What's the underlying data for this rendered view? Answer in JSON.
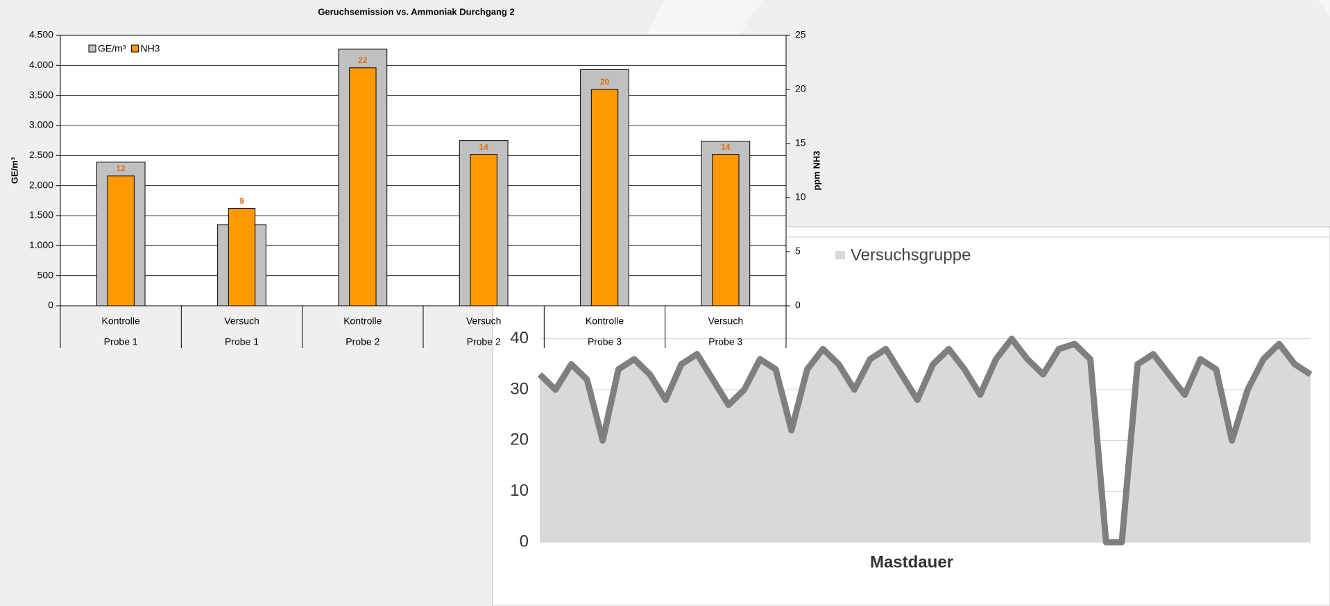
{
  "chart_data": [
    {
      "type": "bar",
      "title": "Geruchsemission vs. Ammoniak Durchgang 2",
      "categories": [
        "Kontrolle",
        "Versuch",
        "Kontrolle",
        "Versuch",
        "Kontrolle",
        "Versuch"
      ],
      "category_groups": [
        "Probe 1",
        "Probe 1",
        "Probe 2",
        "Probe 2",
        "Probe 3",
        "Probe 3"
      ],
      "y_label": "GE/m³",
      "y2_label": "ppm NH3",
      "series": [
        {
          "name": "GE/m³",
          "color": "#c0c0c0",
          "values": [
            2390,
            1350,
            4270,
            2750,
            3930,
            2740
          ]
        },
        {
          "name": "NH3",
          "color": "#ff9900",
          "axis": "y2",
          "values": [
            12,
            9,
            22,
            14,
            20,
            14
          ]
        }
      ],
      "ylim": [
        0,
        4500
      ],
      "yticks": [
        0,
        {
          "value": 500,
          "label": "500"
        },
        {
          "value": 1000,
          "label": "1.000"
        },
        {
          "value": 1500,
          "label": "1.500"
        },
        {
          "value": 2000,
          "label": "2.000"
        },
        {
          "value": 2500,
          "label": "2.500"
        },
        {
          "value": 3000,
          "label": "3.000"
        },
        {
          "value": 3500,
          "label": "3.500"
        },
        {
          "value": 4000,
          "label": "4.000"
        },
        {
          "value": 4500,
          "label": "4.500"
        }
      ],
      "y2lim": [
        0,
        25
      ],
      "y2ticks": [
        0,
        5,
        10,
        15,
        20,
        25
      ],
      "grid": true,
      "legend": "top-left",
      "value_label_color": "#e46c0a"
    },
    {
      "type": "area",
      "x_label": "Mastdauer",
      "series": [
        {
          "name": "Versuchsgruppe",
          "color": "#d9d9d9",
          "line_color": "#7f7f7f",
          "values": [
            33,
            30,
            35,
            32,
            20,
            34,
            36,
            33,
            28,
            35,
            37,
            32,
            27,
            30,
            36,
            34,
            22,
            34,
            38,
            35,
            30,
            36,
            38,
            33,
            28,
            35,
            38,
            34,
            29,
            36,
            40,
            36,
            33,
            38,
            39,
            36,
            0,
            0,
            35,
            37,
            33,
            29,
            36,
            34,
            20,
            30,
            36,
            39,
            35,
            33
          ]
        }
      ],
      "ylim": [
        0,
        60
      ],
      "yticks": [
        0,
        10,
        20,
        30,
        40
      ],
      "grid": true,
      "legend": "top-left"
    }
  ]
}
